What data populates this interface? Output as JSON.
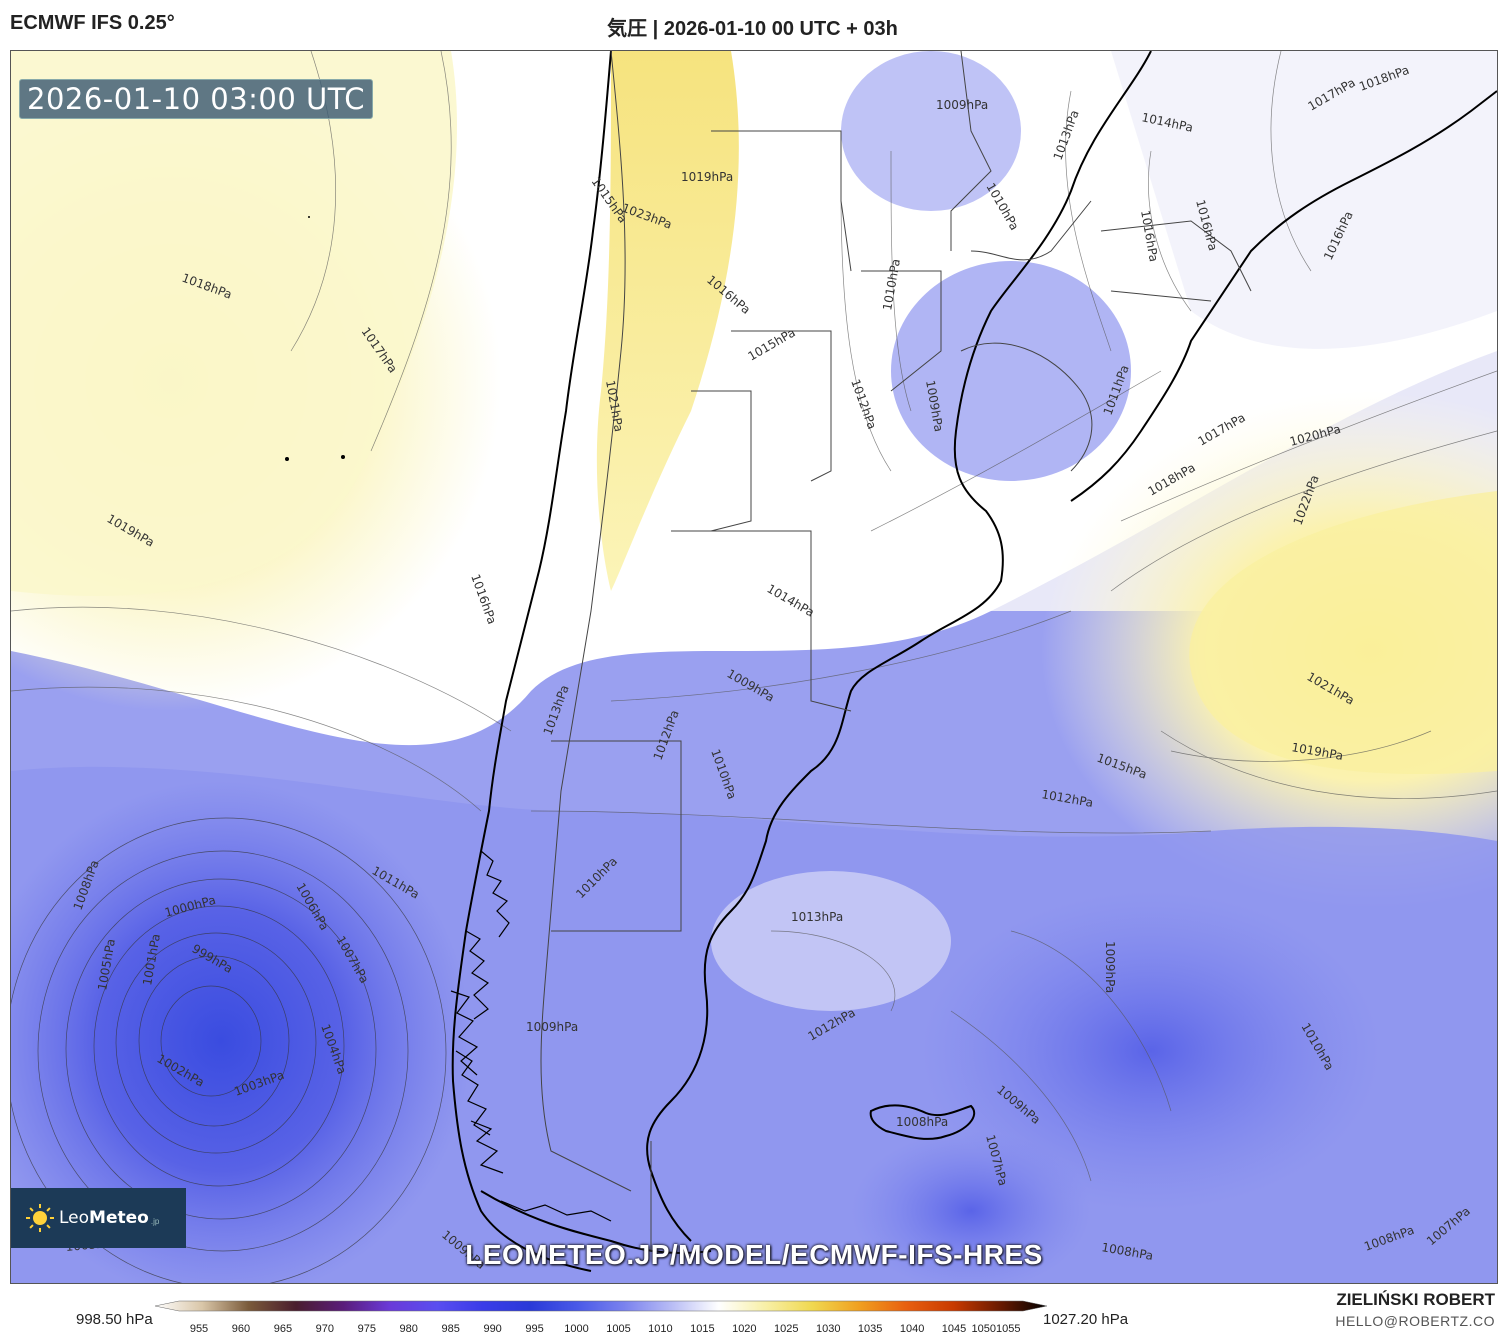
{
  "header": {
    "model": "ECMWF IFS 0.25°",
    "title": "気圧 | 2026-01-10 00 UTC + 03h"
  },
  "map": {
    "valid_time": "2026-01-10 03:00 UTC",
    "url_watermark": "LEOMETEO.JP/MODEL/ECMWF-IFS-HRES",
    "isobar_labels": [
      "1009hPa",
      "1014hPa",
      "1013hPa",
      "1010hPa",
      "1016hPa",
      "1016hPa",
      "1016hPa",
      "1017hPa",
      "1018hPa",
      "1015hPa",
      "1019hPa",
      "1023hPa",
      "1016hPa",
      "1018hPa",
      "1017hPa",
      "1010hPa",
      "1015hPa",
      "1012hPa",
      "1009hPa",
      "1021hPa",
      "1011hPa",
      "1017hPa",
      "1020hPa",
      "1018hPa",
      "1019hPa",
      "1022hPa",
      "1014hPa",
      "1016hPa",
      "1009hPa",
      "1013hPa",
      "1010hPa",
      "1012hPa",
      "1021hPa",
      "1019hPa",
      "1015hPa",
      "1012hPa",
      "1011hPa",
      "1010hPa",
      "1006hPa",
      "1008hPa",
      "1000hPa",
      "999hPa",
      "1007hPa",
      "1005hPa",
      "1001hPa",
      "1004hPa",
      "1002hPa",
      "1003hPa",
      "1013hPa",
      "1009hPa",
      "1009hPa",
      "1012hPa",
      "1010hPa",
      "1009hPa",
      "1008hPa",
      "1007hPa",
      "1008hPa",
      "1008hPa",
      "1007hPa",
      "1009hPa",
      "1003hPa"
    ],
    "colors": {
      "high": "#fbf4a8",
      "mid": "#ffffff",
      "low": "#6a72ea",
      "deep_low": "#3f4fe0",
      "coast": "#000000",
      "border": "#333333"
    }
  },
  "logo": {
    "brand_light": "Leo",
    "brand_bold": "Meteo",
    "suffix": ".jp"
  },
  "colorbar": {
    "min_label": "998.50 hPa",
    "max_label": "1027.20 hPa",
    "ticks": [
      "955",
      "960",
      "965",
      "970",
      "975",
      "980",
      "985",
      "990",
      "995",
      "1000",
      "1005",
      "1010",
      "1015",
      "1020",
      "1025",
      "1030",
      "1035",
      "1040",
      "1045",
      "10501055"
    ],
    "stops": [
      "#ffffff",
      "#d9c6a8",
      "#7a5a3a",
      "#4a1d2e",
      "#5a1d7a",
      "#6a3ad8",
      "#5a4ef0",
      "#3a3ce8",
      "#2a3ad8",
      "#4a5ae8",
      "#7a82ee",
      "#b8bcf5",
      "#ffffff",
      "#f8f0a8",
      "#f0d850",
      "#f0a020",
      "#e86010",
      "#c83a00",
      "#6a1a00",
      "#000000"
    ]
  },
  "credits": {
    "author": "ZIELIŃSKI ROBERT",
    "email": "HELLO@ROBERTZ.CO"
  }
}
